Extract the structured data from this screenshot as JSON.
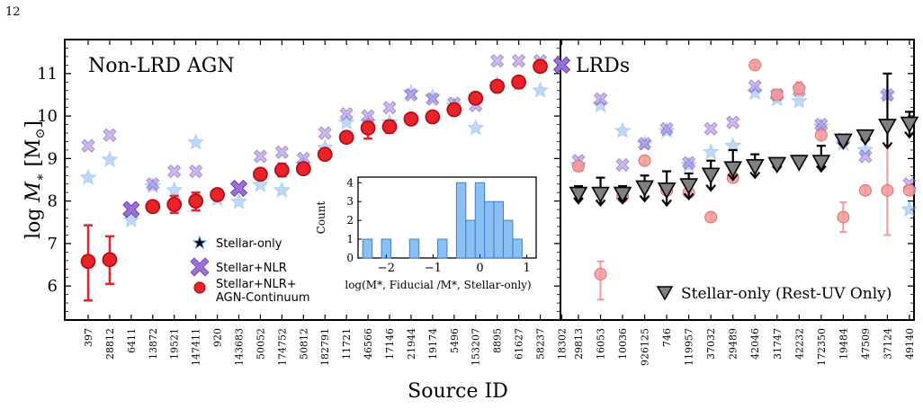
{
  "page_number": "12",
  "chart_data": [
    {
      "type": "scatter",
      "title": "Non-LRD AGN",
      "ylabel": "log M* [M⊙]",
      "xlabel": "Source ID",
      "ylim": [
        5.2,
        11.8
      ],
      "yticks": [
        6,
        7,
        8,
        9,
        10,
        11
      ],
      "categories": [
        "397",
        "28812",
        "6411",
        "13872",
        "19521",
        "147411",
        "920",
        "143683",
        "50052",
        "174752",
        "50812",
        "182791",
        "11721",
        "46566",
        "17146",
        "21944",
        "19174",
        "5496",
        "153207",
        "8895",
        "61627",
        "58237",
        "18302"
      ],
      "series": [
        {
          "name": "Stellar-only",
          "color": "#6ea8f0",
          "values": [
            8.55,
            8.97,
            7.55,
            8.35,
            8.25,
            9.38,
            8.05,
            7.98,
            8.38,
            8.25,
            8.85,
            9.25,
            9.85,
            9.85,
            9.85,
            10.55,
            10.45,
            10.25,
            9.72,
            10.75,
            10.75,
            10.6,
            null
          ]
        },
        {
          "name": "Stellar+NLR",
          "color": "#9a6fd6",
          "values": [
            9.3,
            9.55,
            7.8,
            8.4,
            8.7,
            8.7,
            8.15,
            8.3,
            9.05,
            9.15,
            9.0,
            9.6,
            10.05,
            10.0,
            10.2,
            10.5,
            10.4,
            10.3,
            10.25,
            11.3,
            11.3,
            11.3,
            11.2
          ]
        },
        {
          "name": "Stellar+NLR+ AGN-Continuum",
          "color": "#e8242a",
          "values": [
            6.58,
            6.62,
            null,
            7.87,
            7.92,
            8.0,
            8.15,
            null,
            8.63,
            8.73,
            8.76,
            9.1,
            9.5,
            9.72,
            9.75,
            9.93,
            9.98,
            10.15,
            10.42,
            10.7,
            10.8,
            11.17,
            null
          ],
          "err_low": [
            0.92,
            0.57,
            null,
            0.06,
            0.2,
            0.22,
            0.06,
            null,
            0.12,
            0.15,
            0.12,
            0.08,
            0.07,
            0.25,
            0.14,
            0.08,
            0.07,
            0.1,
            0.1,
            0.1,
            0.08,
            0.06,
            null
          ],
          "err_high": [
            0.85,
            0.55,
            null,
            0.06,
            0.2,
            0.2,
            0.06,
            null,
            0.12,
            0.15,
            0.12,
            0.08,
            0.07,
            0.1,
            0.14,
            0.08,
            0.07,
            0.1,
            0.1,
            0.1,
            0.08,
            0.06,
            null
          ]
        }
      ]
    },
    {
      "type": "scatter",
      "title": "LRDs",
      "xlabel": "Source ID",
      "ylim": [
        5.2,
        11.8
      ],
      "categories": [
        "29813",
        "16053",
        "10036",
        "926125",
        "746",
        "119957",
        "37032",
        "29489",
        "42046",
        "31747",
        "42232",
        "172350",
        "19484",
        "47509",
        "37124",
        "49140"
      ],
      "series": [
        {
          "name": "Stellar-only",
          "color": "#6ea8f0",
          "values": [
            8.85,
            10.25,
            9.65,
            9.35,
            9.65,
            8.85,
            9.15,
            9.3,
            10.55,
            10.4,
            10.35,
            9.75,
            9.35,
            9.2,
            10.5,
            7.8
          ]
        },
        {
          "name": "Stellar+NLR",
          "color": "#9a6fd6",
          "values": [
            8.95,
            10.4,
            8.85,
            9.35,
            9.7,
            8.9,
            9.7,
            9.85,
            10.7,
            10.5,
            10.6,
            9.8,
            9.45,
            9.05,
            10.5,
            8.4
          ]
        },
        {
          "name": "Stellar+NLR+ AGN-Continuum",
          "color": "#f29a9a",
          "values": [
            8.82,
            6.28,
            8.1,
            8.95,
            8.25,
            8.2,
            7.62,
            8.55,
            11.2,
            10.5,
            10.65,
            9.55,
            7.62,
            8.25,
            8.25,
            8.25
          ],
          "err_low": [
            0.1,
            0.6,
            0.1,
            0.1,
            0.1,
            0.1,
            0.1,
            0.1,
            0.05,
            0.1,
            0.15,
            0.1,
            0.35,
            0.1,
            1.05,
            0.1
          ],
          "err_high": [
            0.1,
            0.3,
            0.1,
            0.1,
            0.1,
            0.1,
            0.1,
            0.1,
            0.05,
            0.1,
            0.15,
            0.1,
            0.35,
            0.1,
            1.05,
            0.1
          ]
        },
        {
          "name": "Stellar-only (Rest-UV Only)",
          "color": "#808080",
          "upper_limit": true,
          "values": [
            8.15,
            8.15,
            8.15,
            8.3,
            8.25,
            8.35,
            8.6,
            8.75,
            8.8,
            8.85,
            8.9,
            8.9,
            9.4,
            9.5,
            9.75,
            9.8
          ],
          "err_low": [
            0.2,
            0.25,
            0.2,
            0.3,
            0.35,
            0.3,
            0.35,
            0.25,
            0.25,
            0.15,
            0.1,
            0.2,
            0.15,
            0.15,
            0.5,
            0.3
          ],
          "err_high": [
            0.2,
            0.4,
            0.2,
            0.3,
            0.45,
            0.3,
            0.35,
            0.45,
            0.3,
            0.15,
            0.1,
            0.4,
            0.15,
            0.15,
            1.25,
            0.3
          ]
        }
      ]
    },
    {
      "type": "bar",
      "subtype": "histogram",
      "xlabel": "log(M*, Fiducial /M*, Stellar-only)",
      "ylabel": "Count",
      "xlim": [
        -2.6,
        1.2
      ],
      "ylim": [
        0,
        4.3
      ],
      "xticks": [
        -2,
        -1,
        0,
        1
      ],
      "yticks": [
        0,
        1,
        2,
        3,
        4
      ],
      "bin_edges": [
        -2.5,
        -2.3,
        -2.1,
        -1.9,
        -1.7,
        -1.5,
        -1.3,
        -1.1,
        -0.9,
        -0.7,
        -0.5,
        -0.3,
        -0.1,
        0.1,
        0.3,
        0.5,
        0.7,
        0.9
      ],
      "values": [
        1,
        0,
        1,
        0,
        0,
        1,
        0,
        0,
        1,
        0,
        4,
        2,
        4,
        3,
        3,
        2,
        1
      ],
      "color": "#8cc0f2"
    }
  ],
  "legend_main": [
    "Stellar-only",
    "Stellar+NLR",
    "Stellar+NLR+",
    "AGN-Continuum"
  ],
  "legend_lrd": "Stellar-only (Rest-UV Only)"
}
